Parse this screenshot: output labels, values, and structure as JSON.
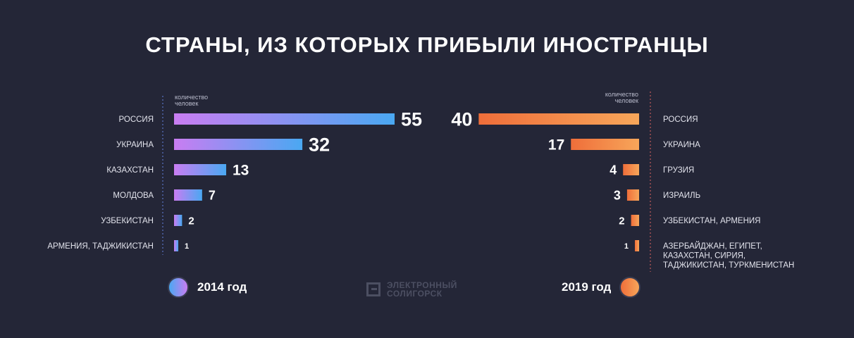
{
  "title": "СТРАНЫ, ИЗ КОТОРЫХ ПРИБЫЛИ ИНОСТРАНЦЫ",
  "legend": {
    "left": "2014 год",
    "right": "2019 год"
  },
  "logo": {
    "line1": "ЭЛЕКТРОННЫЙ",
    "line2": "СОЛИГОРСК"
  },
  "colors": {
    "background": "#242637",
    "series_2014_start": "#c97df2",
    "series_2014_end": "#4aa8f2",
    "series_2019_start": "#ef6e3a",
    "series_2019_end": "#f7a65a"
  },
  "chart_data": [
    {
      "type": "bar",
      "orientation": "horizontal",
      "series_name": "2014 год",
      "axis_label": "количество человек",
      "categories": [
        "РОССИЯ",
        "УКРАИНА",
        "КАЗАХСТАН",
        "МОЛДОВА",
        "УЗБЕКИСТАН",
        "АРМЕНИЯ, ТАДЖИКИСТАН"
      ],
      "values": [
        55,
        32,
        13,
        7,
        2,
        1
      ]
    },
    {
      "type": "bar",
      "orientation": "horizontal",
      "series_name": "2019 год",
      "axis_label": "количество человек",
      "categories": [
        "РОССИЯ",
        "УКРАИНА",
        "ГРУЗИЯ",
        "ИЗРАИЛЬ",
        "УЗБЕКИСТАН, АРМЕНИЯ",
        "АЗЕРБАЙДЖАН, ЕГИПЕТ, КАЗАХСТАН, СИРИЯ, ТАДЖИКИСТАН, ТУРКМЕНИСТАН"
      ],
      "values": [
        40,
        17,
        4,
        3,
        2,
        1
      ]
    }
  ]
}
